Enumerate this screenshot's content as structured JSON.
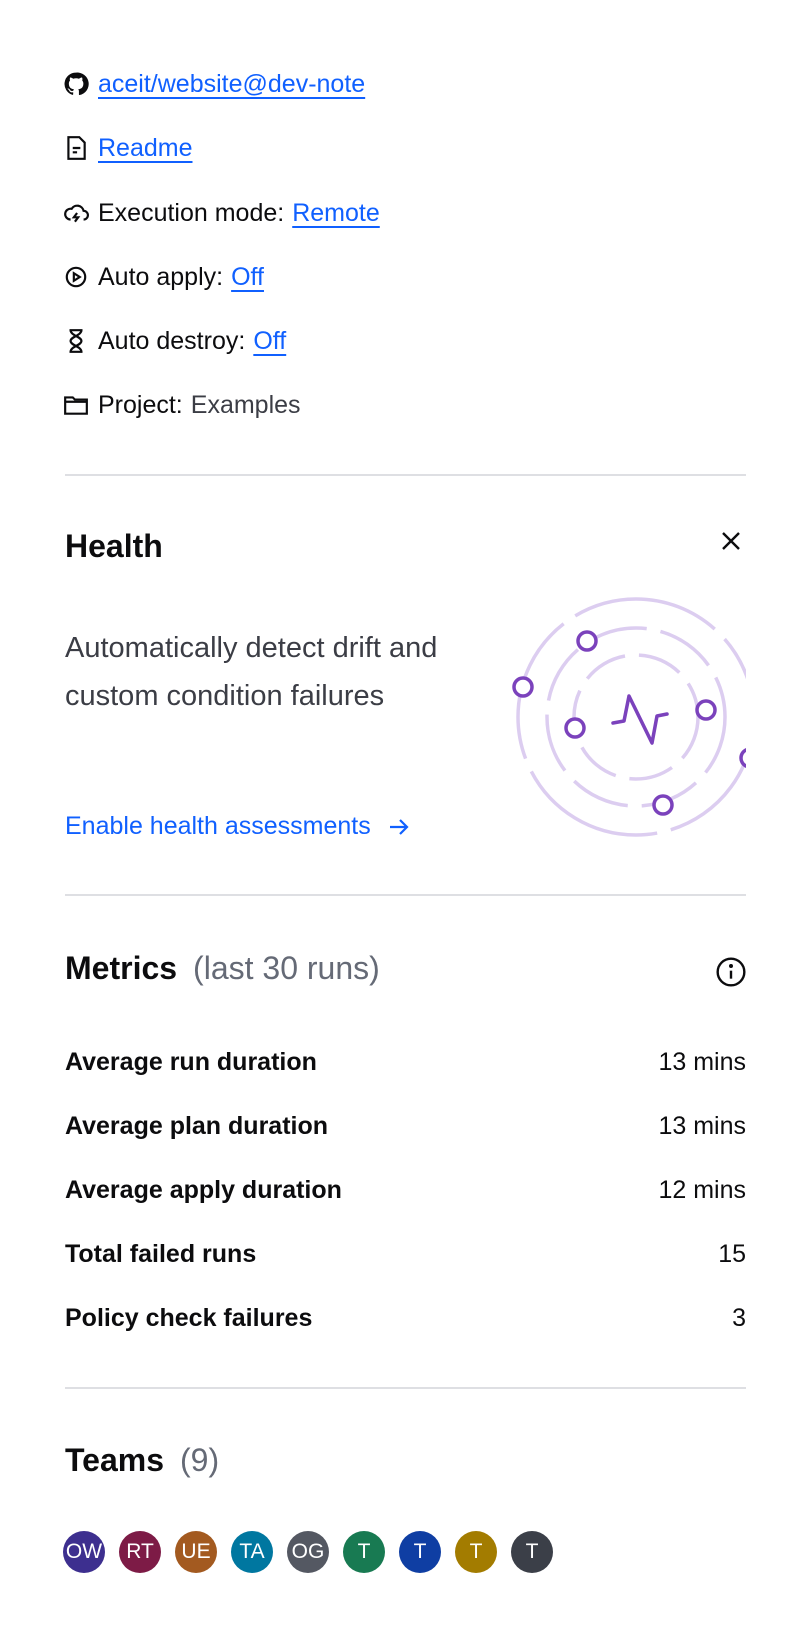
{
  "info": {
    "repo": {
      "icon": "github-icon",
      "text": "aceit/website@dev-note"
    },
    "readme": {
      "icon": "file-text-icon",
      "text": "Readme"
    },
    "execution_mode": {
      "icon": "cloud-lightning-icon",
      "label": "Execution mode:",
      "value": "Remote"
    },
    "auto_apply": {
      "icon": "gear-play-icon",
      "label": "Auto apply:",
      "value": "Off"
    },
    "auto_destroy": {
      "icon": "hourglass-icon",
      "label": "Auto destroy:",
      "value": "Off"
    },
    "project": {
      "icon": "folder-icon",
      "label": "Project:",
      "value": "Examples"
    }
  },
  "health": {
    "title": "Health",
    "description": "Automatically detect drift and custom condition failures",
    "cta": "Enable health assessments",
    "accent": "#7b42bc"
  },
  "metrics": {
    "title": "Metrics",
    "subtitle": "(last 30 runs)",
    "rows": [
      {
        "label": "Average run duration",
        "value": "13 mins"
      },
      {
        "label": "Average plan duration",
        "value": "13 mins"
      },
      {
        "label": "Average apply duration",
        "value": "12 mins"
      },
      {
        "label": "Total failed runs",
        "value": "15"
      },
      {
        "label": "Policy check failures",
        "value": "3"
      }
    ]
  },
  "teams": {
    "title": "Teams",
    "count": "(9)",
    "avatars": [
      {
        "initials": "OW",
        "color": "#3d2f8f"
      },
      {
        "initials": "RT",
        "color": "#7d1b46"
      },
      {
        "initials": "UE",
        "color": "#a35a20"
      },
      {
        "initials": "TA",
        "color": "#0077a0"
      },
      {
        "initials": "OG",
        "color": "#545862"
      },
      {
        "initials": "T",
        "color": "#187a52"
      },
      {
        "initials": "T",
        "color": "#0f3ea3"
      },
      {
        "initials": "T",
        "color": "#a37c00"
      },
      {
        "initials": "T",
        "color": "#3b3f48"
      }
    ]
  }
}
